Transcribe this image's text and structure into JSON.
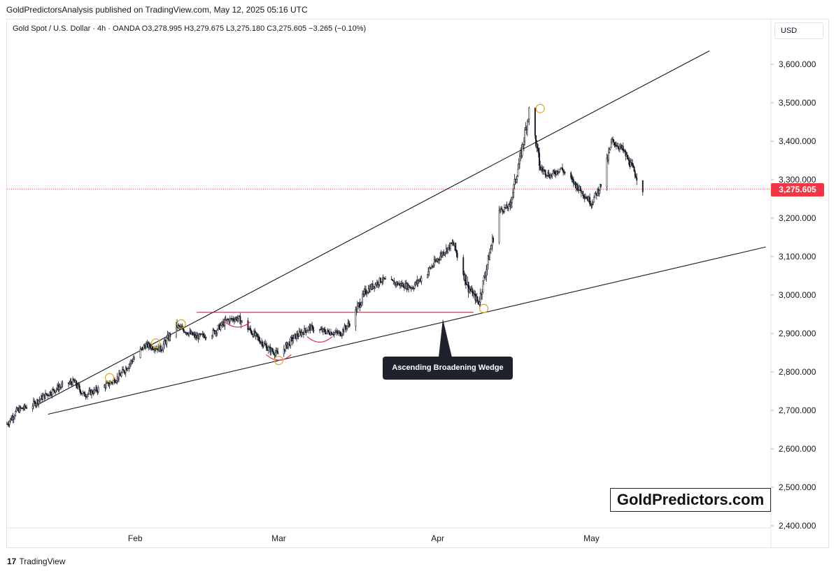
{
  "header": {
    "published": "GoldPredictorsAnalysis published on TradingView.com, May 12, 2025 05:16 UTC"
  },
  "legend": {
    "symbol": "Gold Spot / U.S. Dollar · 4h · OANDA",
    "open": "O3,278.995",
    "high": "H3,279.675",
    "low": "L3,275.180",
    "close": "C3,275.605",
    "change": "−3.265 (−0.10%)"
  },
  "currency_button": "USD",
  "price_tag": "3,275.605",
  "annotation": "Ascending Broadening Wedge",
  "watermark": "GoldPredictors.com",
  "footer": {
    "logo": "17",
    "brand": "TradingView"
  },
  "colors": {
    "candle": "#131722",
    "price_line": "#f23645",
    "resistance_line": "#9c2740",
    "pivot_circle": "#d9a520",
    "arc": "#e0314b"
  },
  "chart_data": {
    "type": "line",
    "title": "",
    "ylim": [
      2400,
      3700
    ],
    "y_ticks": [
      "3,600.000",
      "3,500.000",
      "3,400.000",
      "3,300.000",
      "3,200.000",
      "3,100.000",
      "3,000.000",
      "2,900.000",
      "2,800.000",
      "2,700.000",
      "2,600.000",
      "2,500.000",
      "2,400.000"
    ],
    "x_ticks": [
      "Feb",
      "Mar",
      "Apr",
      "May"
    ],
    "x_range": [
      "2025-01-07",
      "2025-06-05"
    ],
    "last_price": 3275.605,
    "series": [
      {
        "x": [
          "2025-01-07",
          "2025-01-09",
          "2025-01-12",
          "2025-01-14",
          "2025-01-17",
          "2025-01-20",
          "2025-01-22",
          "2025-01-24",
          "2025-01-27",
          "2025-01-29",
          "2025-02-01",
          "2025-02-03",
          "2025-02-06",
          "2025-02-09",
          "2025-02-11",
          "2025-02-13",
          "2025-02-16",
          "2025-02-19",
          "2025-02-21",
          "2025-02-24",
          "2025-02-27",
          "2025-03-01",
          "2025-03-04",
          "2025-03-07",
          "2025-03-10",
          "2025-03-13",
          "2025-03-15",
          "2025-03-18",
          "2025-03-21",
          "2025-03-24",
          "2025-03-27",
          "2025-03-30",
          "2025-04-02",
          "2025-04-04",
          "2025-04-07",
          "2025-04-09",
          "2025-04-11",
          "2025-04-13",
          "2025-04-15",
          "2025-04-17",
          "2025-04-19",
          "2025-04-21",
          "2025-04-23",
          "2025-04-25",
          "2025-04-27",
          "2025-04-29",
          "2025-05-01",
          "2025-05-03",
          "2025-05-05",
          "2025-05-07",
          "2025-05-09",
          "2025-05-11"
        ],
        "values": [
          2665,
          2700,
          2715,
          2735,
          2760,
          2775,
          2740,
          2750,
          2770,
          2790,
          2840,
          2870,
          2860,
          2920,
          2905,
          2890,
          2900,
          2935,
          2940,
          2900,
          2860,
          2845,
          2890,
          2915,
          2905,
          2900,
          2930,
          3010,
          3040,
          3030,
          3020,
          3060,
          3110,
          3135,
          3020,
          2980,
          3100,
          3220,
          3230,
          3350,
          3490,
          3330,
          3310,
          3330,
          3300,
          3270,
          3240,
          3290,
          3400,
          3380,
          3330,
          3275
        ]
      }
    ],
    "trendlines": [
      {
        "name": "upper",
        "from": [
          "2025-01-13",
          2715
        ],
        "to": [
          "2025-05-24",
          3635
        ]
      },
      {
        "name": "lower",
        "from": [
          "2025-01-15",
          2690
        ],
        "to": [
          "2025-06-04",
          3125
        ]
      },
      {
        "name": "resistance",
        "from": [
          "2025-02-13",
          2955
        ],
        "to": [
          "2025-04-08",
          2955
        ]
      }
    ],
    "pivots": [
      [
        "2025-01-27",
        2785
      ],
      [
        "2025-02-05",
        2875
      ],
      [
        "2025-02-10",
        2925
      ],
      [
        "2025-03-01",
        2830
      ],
      [
        "2025-04-10",
        2965
      ],
      [
        "2025-04-21",
        3485
      ]
    ]
  }
}
